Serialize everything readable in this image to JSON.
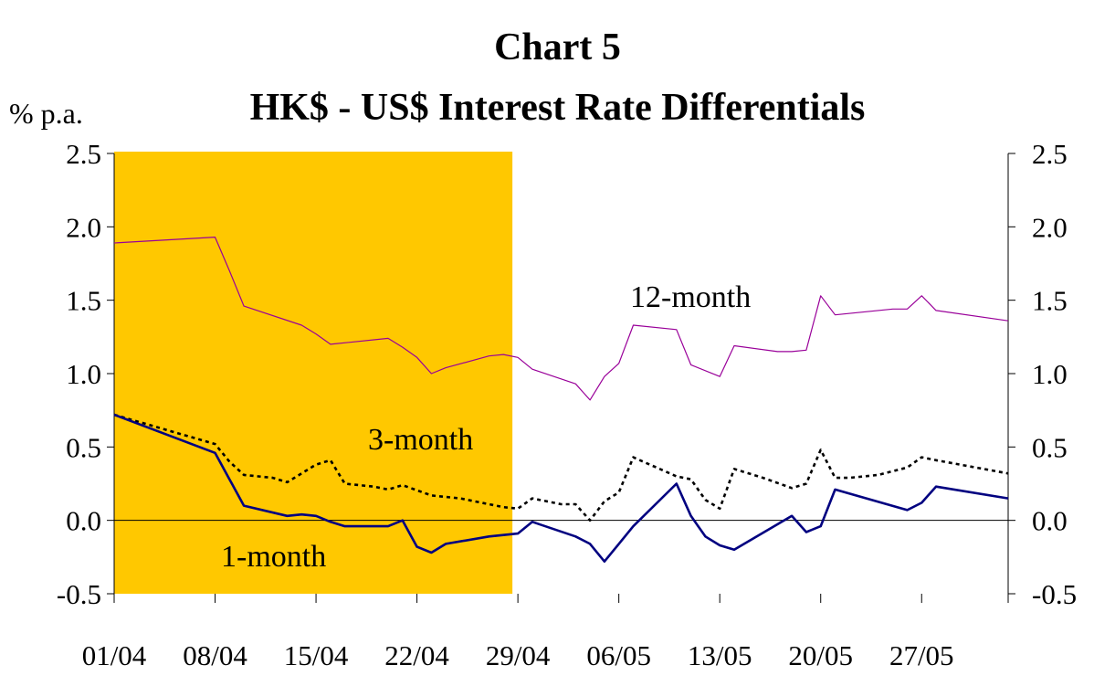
{
  "title_line1": "Chart 5",
  "title_line2": "HK$ - US$ Interest Rate Differentials",
  "ylabel": "% p.a.",
  "colors": {
    "shade": "#FFC800",
    "one_month": "#000080",
    "three_month": "#000000",
    "twelve_month": "#990099",
    "axis": "#000000"
  },
  "chart_data": {
    "type": "line",
    "title": "HK$ - US$ Interest Rate Differentials",
    "ylabel": "% p.a.",
    "ylim": [
      -0.5,
      2.5
    ],
    "yticks": [
      "2.5",
      "2.0",
      "1.5",
      "1.0",
      "0.5",
      "0.0",
      "-0.5"
    ],
    "xticks": [
      "01/04",
      "08/04",
      "15/04",
      "22/04",
      "29/04",
      "06/05",
      "13/05",
      "20/05",
      "27/05"
    ],
    "xrange": [
      "01/04",
      "02/06"
    ],
    "shaded_period": [
      "01/04",
      "29/04"
    ],
    "grid": false,
    "series": [
      {
        "name": "12-month",
        "style": "thin-solid",
        "x": [
          "01/04",
          "08/04",
          "09/04",
          "10/04",
          "14/04",
          "15/04",
          "16/04",
          "20/04",
          "21/04",
          "22/04",
          "23/04",
          "24/04",
          "27/04",
          "28/04",
          "29/04",
          "30/04",
          "03/05",
          "04/05",
          "05/05",
          "06/05",
          "07/05",
          "10/05",
          "11/05",
          "13/05",
          "14/05",
          "17/05",
          "18/05",
          "19/05",
          "20/05",
          "21/05",
          "25/05",
          "26/05",
          "27/05",
          "28/05",
          "02/06"
        ],
        "values": [
          1.89,
          1.93,
          1.7,
          1.46,
          1.33,
          1.27,
          1.2,
          1.24,
          1.18,
          1.11,
          1.0,
          1.04,
          1.12,
          1.13,
          1.11,
          1.03,
          0.93,
          0.82,
          0.98,
          1.07,
          1.33,
          1.3,
          1.06,
          0.98,
          1.19,
          1.15,
          1.15,
          1.16,
          1.53,
          1.4,
          1.44,
          1.44,
          1.53,
          1.43,
          1.36
        ]
      },
      {
        "name": "3-month",
        "style": "dotted",
        "x": [
          "01/04",
          "08/04",
          "09/04",
          "10/04",
          "12/04",
          "13/04",
          "15/04",
          "16/04",
          "17/04",
          "19/04",
          "20/04",
          "21/04",
          "23/04",
          "25/04",
          "27/04",
          "28/04",
          "29/04",
          "30/04",
          "02/05",
          "03/05",
          "04/05",
          "05/05",
          "06/05",
          "07/05",
          "10/05",
          "11/05",
          "12/05",
          "13/05",
          "14/05",
          "16/05",
          "18/05",
          "19/05",
          "20/05",
          "21/05",
          "22/05",
          "24/05",
          "26/05",
          "27/05",
          "28/05",
          "02/06"
        ],
        "values": [
          0.72,
          0.52,
          0.4,
          0.31,
          0.29,
          0.26,
          0.38,
          0.41,
          0.25,
          0.23,
          0.21,
          0.24,
          0.17,
          0.15,
          0.11,
          0.09,
          0.08,
          0.15,
          0.11,
          0.11,
          0.0,
          0.13,
          0.19,
          0.43,
          0.3,
          0.28,
          0.14,
          0.08,
          0.35,
          0.29,
          0.22,
          0.25,
          0.48,
          0.29,
          0.29,
          0.31,
          0.36,
          0.43,
          0.41,
          0.32
        ]
      },
      {
        "name": "1-month",
        "style": "solid",
        "x": [
          "01/04",
          "08/04",
          "09/04",
          "10/04",
          "13/04",
          "14/04",
          "15/04",
          "16/04",
          "17/04",
          "20/04",
          "21/04",
          "22/04",
          "23/04",
          "24/04",
          "27/04",
          "28/04",
          "29/04",
          "30/04",
          "03/05",
          "04/05",
          "05/05",
          "06/05",
          "07/05",
          "10/05",
          "11/05",
          "12/05",
          "13/05",
          "14/05",
          "18/05",
          "19/05",
          "20/05",
          "21/05",
          "26/05",
          "27/05",
          "28/05",
          "02/06"
        ],
        "values": [
          0.72,
          0.46,
          0.28,
          0.1,
          0.03,
          0.04,
          0.03,
          -0.01,
          -0.04,
          -0.04,
          0.0,
          -0.18,
          -0.22,
          -0.16,
          -0.11,
          -0.1,
          -0.09,
          -0.01,
          -0.11,
          -0.16,
          -0.28,
          -0.16,
          -0.04,
          0.25,
          0.03,
          -0.11,
          -0.17,
          -0.2,
          0.03,
          -0.08,
          -0.04,
          0.21,
          0.07,
          0.12,
          0.23,
          0.15
        ]
      }
    ],
    "annotations": [
      "12-month",
      "3-month",
      "1-month"
    ]
  }
}
